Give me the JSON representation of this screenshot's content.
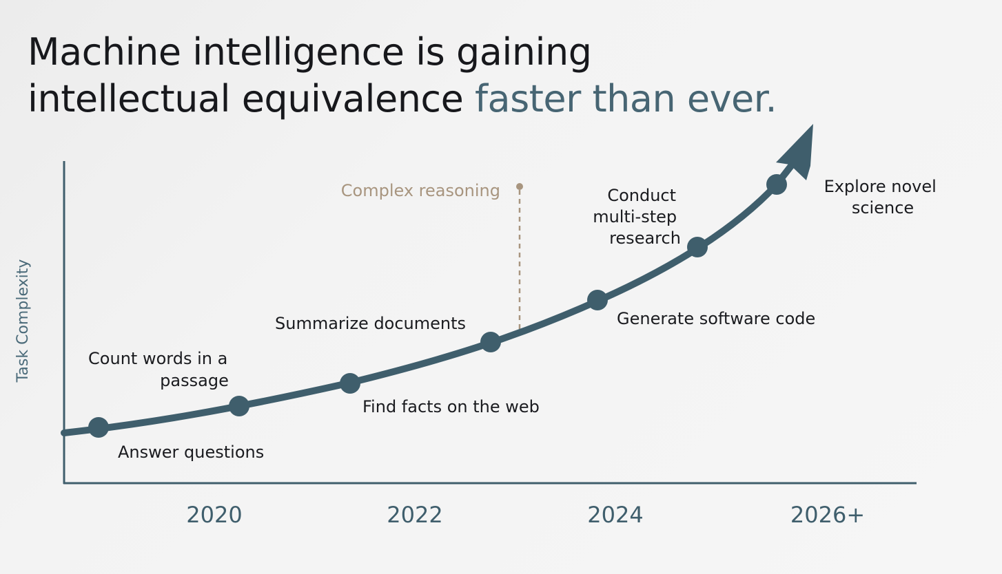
{
  "headline": {
    "line1": "Machine intelligence is gaining",
    "line2_prefix": "intellectual equivalence ",
    "line2_accent": "faster than ever."
  },
  "axis": {
    "y_label": "Task Complexity",
    "x_ticks": [
      "2020",
      "2022",
      "2024",
      "2026+"
    ]
  },
  "milestones": [
    {
      "id": "answer-questions",
      "lines": [
        "Answer questions"
      ]
    },
    {
      "id": "count-words",
      "lines": [
        "Count words in a",
        "passage"
      ]
    },
    {
      "id": "find-facts",
      "lines": [
        "Find facts on the web"
      ]
    },
    {
      "id": "summarize-documents",
      "lines": [
        "Summarize documents"
      ]
    },
    {
      "id": "generate-code",
      "lines": [
        "Generate software code"
      ]
    },
    {
      "id": "multi-step-research",
      "lines": [
        "Conduct",
        "multi-step",
        "research"
      ]
    },
    {
      "id": "explore-science",
      "lines": [
        "Explore novel",
        "science"
      ]
    }
  ],
  "marker": {
    "label": "Complex reasoning"
  },
  "colors": {
    "curve": "#3f5e6c",
    "accent": "#476573",
    "marker": "#a8957f",
    "text": "#1a1b1f"
  }
}
